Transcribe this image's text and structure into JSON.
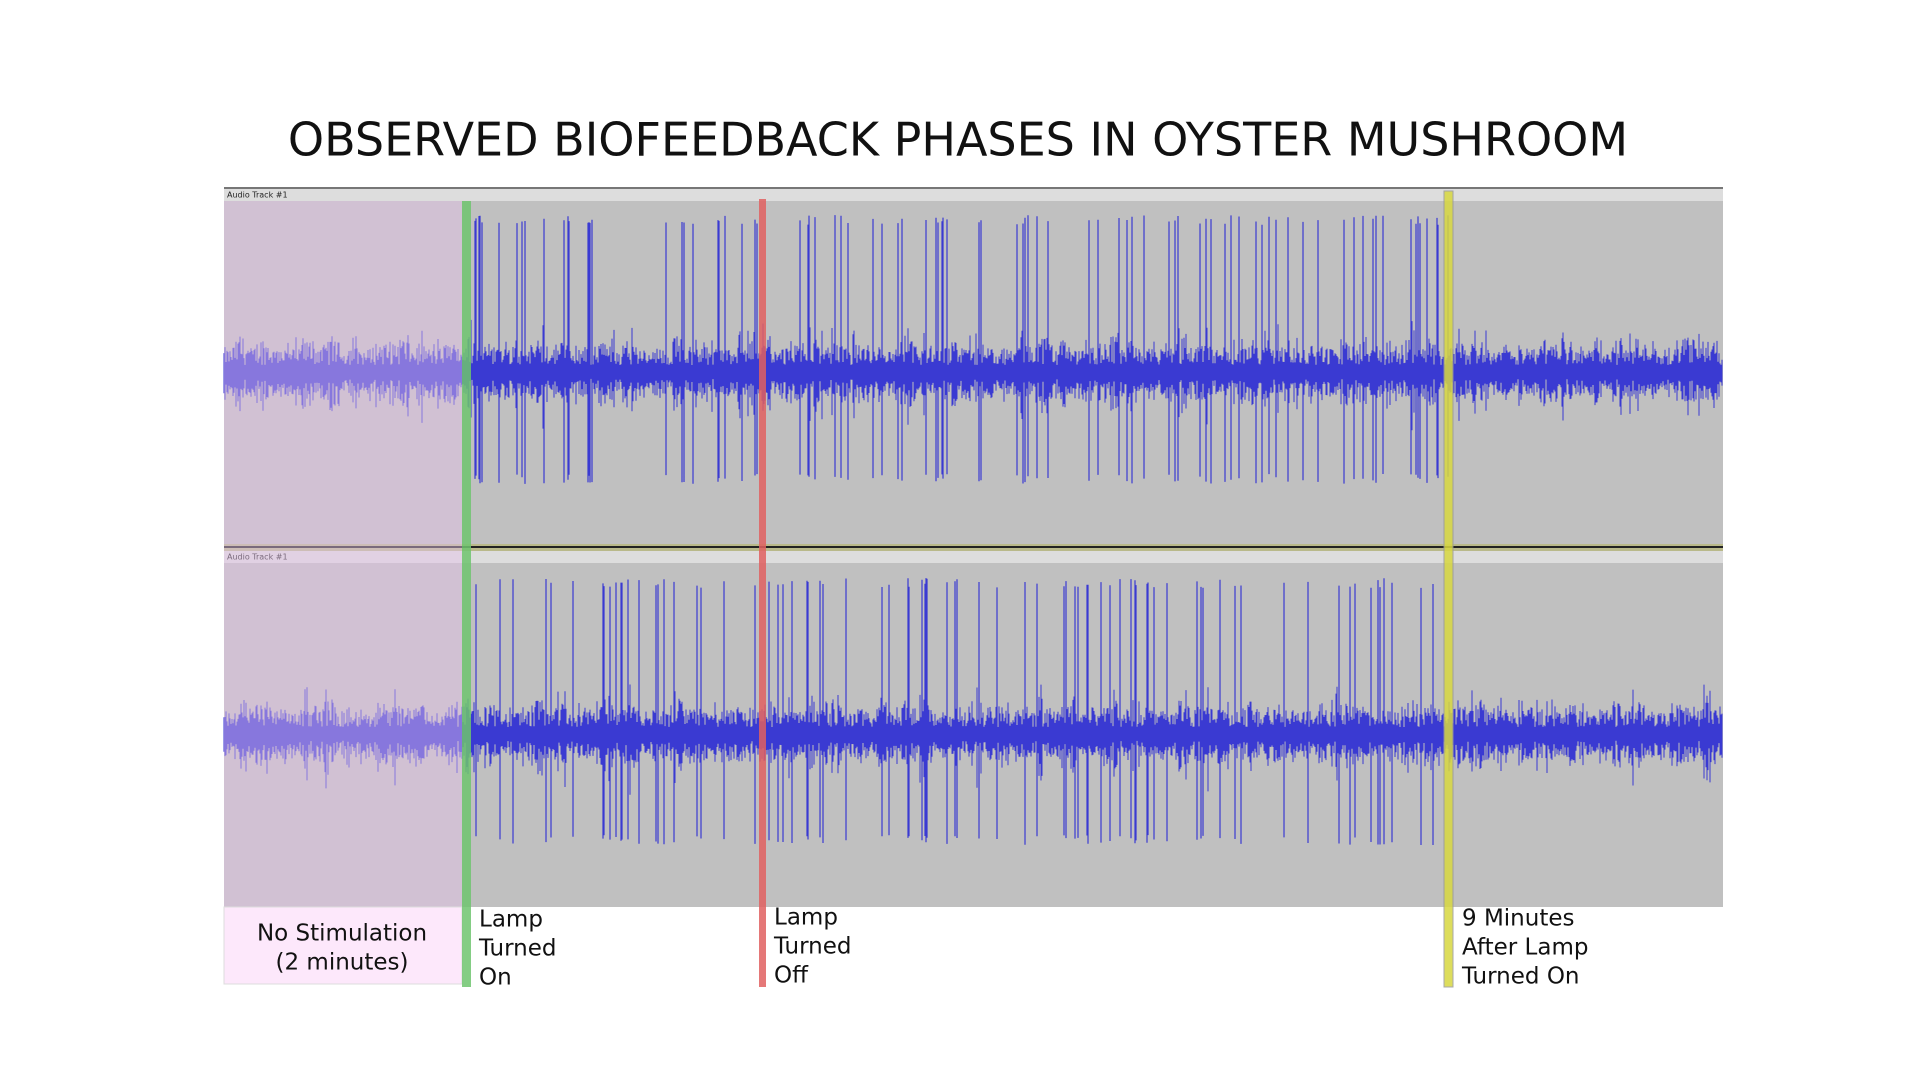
{
  "title": "OBSERVED BIOFEEDBACK PHASES IN OYSTER MUSHROOM",
  "tracks": [
    {
      "label": "Audio Track #1"
    },
    {
      "label": "Audio Track #1"
    }
  ],
  "annotations": [
    {
      "lines": [
        "No Stimulation",
        "(2 minutes)"
      ]
    },
    {
      "lines": [
        "Lamp",
        "Turned",
        "On"
      ]
    },
    {
      "lines": [
        "Lamp",
        "Turned",
        "Off"
      ]
    },
    {
      "lines": [
        "9 Minutes",
        "After Lamp",
        "Turned On"
      ]
    }
  ]
}
